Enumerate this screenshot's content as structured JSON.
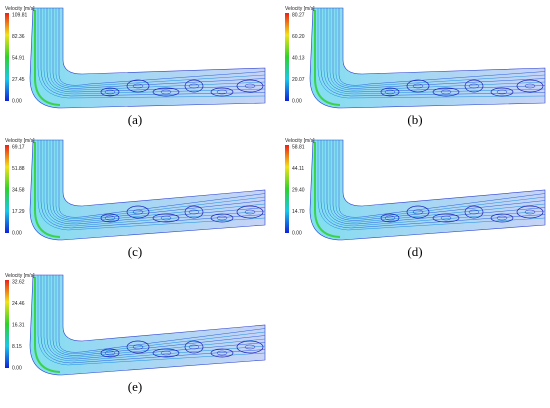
{
  "panels": [
    {
      "label": "(a)",
      "legend_title": "Velocity [m/s]",
      "ticks": [
        "109.81",
        "82.36",
        "54.91",
        "27.45",
        "0.00"
      ]
    },
    {
      "label": "(b)",
      "legend_title": "Velocity [m/s]",
      "ticks": [
        "80.27",
        "60.20",
        "40.13",
        "20.07",
        "0.00"
      ]
    },
    {
      "label": "(c)",
      "legend_title": "Velocity [m/s]",
      "ticks": [
        "69.17",
        "51.88",
        "34.58",
        "17.29",
        "0.00"
      ]
    },
    {
      "label": "(d)",
      "legend_title": "Velocity [m/s]",
      "ticks": [
        "58.81",
        "44.11",
        "29.40",
        "14.70",
        "0.00"
      ]
    },
    {
      "label": "(e)",
      "legend_title": "Velocity [m/s]",
      "ticks": [
        "32.62",
        "24.46",
        "16.31",
        "8.15",
        "0.00"
      ]
    }
  ]
}
